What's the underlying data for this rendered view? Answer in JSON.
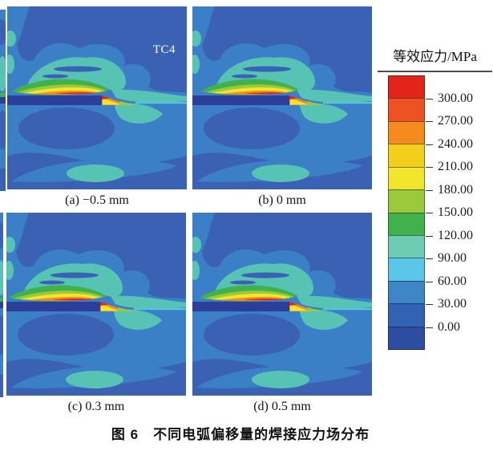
{
  "figure": {
    "caption": "图 6　不同电弧偏移量的焊接应力场分布",
    "annotation": "TC4"
  },
  "panels": [
    {
      "id": "a",
      "label": "(a) −0.5 mm"
    },
    {
      "id": "b",
      "label": "(b) 0 mm"
    },
    {
      "id": "c",
      "label": "(c) 0.3 mm"
    },
    {
      "id": "d",
      "label": "(d) 0.5 mm"
    }
  ],
  "legend": {
    "title": "等效应力/MPa",
    "ticks": [
      "300.00",
      "270.00",
      "240.00",
      "210.00",
      "180.00",
      "150.00",
      "120.00",
      "90.00",
      "60.00",
      "30.00",
      "0.00"
    ],
    "band_colors": [
      "#e2241b",
      "#ee5123",
      "#f58b1f",
      "#f2cf1c",
      "#f2e52b",
      "#9aca3b",
      "#41b14b",
      "#6fccb4",
      "#5cc6e9",
      "#3e86c8",
      "#3162b4",
      "#2d4da3"
    ]
  },
  "colors": {
    "background": "#3b80c6",
    "deep_blue": "#3a61b4",
    "plate": "#2b3e99",
    "teal": "#57c3b5",
    "green": "#41b14b",
    "yellow_green": "#9aca3b",
    "yellow": "#f2e52b",
    "orange": "#f28d1e",
    "red": "#e2241b",
    "cyan_line": "#57c5e2"
  },
  "chart_data": {
    "type": "heatmap",
    "subtype": "welding-stress-contour",
    "title": "图 6　不同电弧偏移量的焊接应力场分布",
    "panels": [
      {
        "label": "(a) −0.5 mm",
        "arc_offset_mm": -0.5
      },
      {
        "label": "(b) 0 mm",
        "arc_offset_mm": 0
      },
      {
        "label": "(c) 0.3 mm",
        "arc_offset_mm": 0.3
      },
      {
        "label": "(d) 0.5 mm",
        "arc_offset_mm": 0.5
      }
    ],
    "colorbar": {
      "label": "等效应力/MPa",
      "tick_values": [
        300,
        270,
        240,
        210,
        180,
        150,
        120,
        90,
        60,
        30,
        0
      ],
      "range_mpa": [
        0,
        300
      ],
      "band_colors_top_to_bottom": [
        "#e2241b",
        "#ee5123",
        "#f58b1f",
        "#f2cf1c",
        "#f2e52b",
        "#9aca3b",
        "#41b14b",
        "#6fccb4",
        "#5cc6e9",
        "#3e86c8",
        "#3162b4",
        "#2d4da3"
      ]
    },
    "annotations": [
      "TC4"
    ],
    "legend_position": "right"
  }
}
